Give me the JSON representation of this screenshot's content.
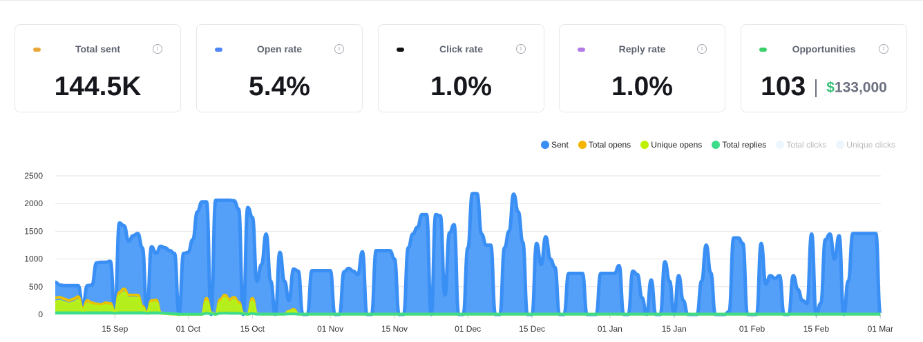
{
  "cards": [
    {
      "title": "Total sent",
      "value": "144.5K",
      "color": "#e9a93a"
    },
    {
      "title": "Open rate",
      "value": "5.4%",
      "color": "#4f86f7"
    },
    {
      "title": "Click rate",
      "value": "1.0%",
      "color": "#111111"
    },
    {
      "title": "Reply rate",
      "value": "1.0%",
      "color": "#b27be8"
    },
    {
      "title": "Opportunities",
      "value": "103",
      "amount_symbol": "$",
      "amount": "133,000",
      "color": "#3ccf6a"
    }
  ],
  "legend": [
    {
      "label": "Sent",
      "color": "#3a8ff5",
      "active": true
    },
    {
      "label": "Total opens",
      "color": "#f5b400",
      "active": true
    },
    {
      "label": "Unique opens",
      "color": "#bff000",
      "active": true
    },
    {
      "label": "Total replies",
      "color": "#3ddc8a",
      "active": true
    },
    {
      "label": "Total clicks",
      "color": "#eef6fd",
      "active": false
    },
    {
      "label": "Unique clicks",
      "color": "#eef6fd",
      "active": false
    }
  ],
  "chart_data": {
    "type": "area",
    "x_start": "02 Sep",
    "x_end": "01 Mar",
    "x_step": "1 day",
    "x_tick_labels": [
      "15 Sep",
      "01 Oct",
      "15 Oct",
      "01 Nov",
      "15 Nov",
      "01 Dec",
      "15 Dec",
      "01 Jan",
      "15 Jan",
      "01 Feb",
      "15 Feb",
      "01 Mar"
    ],
    "y_tick_labels": [
      "0",
      "500",
      "1000",
      "1500",
      "2000",
      "2500"
    ],
    "ylim": [
      0,
      2500
    ],
    "grid": true,
    "legend_position": "top-right",
    "series": [
      {
        "name": "Sent",
        "color": "#3a8ff5",
        "fill": "#549ff8",
        "values": [
          580,
          530,
          520,
          520,
          520,
          520,
          150,
          520,
          530,
          930,
          940,
          940,
          960,
          50,
          1650,
          1600,
          1320,
          1420,
          1460,
          1200,
          50,
          1220,
          1100,
          1230,
          1200,
          1150,
          1100,
          0,
          1100,
          1120,
          1350,
          1850,
          2030,
          2030,
          0,
          2060,
          2060,
          2060,
          2060,
          2050,
          1900,
          0,
          1930,
          1750,
          600,
          900,
          1450,
          600,
          0,
          1120,
          600,
          250,
          820,
          780,
          0,
          0,
          790,
          790,
          790,
          790,
          790,
          0,
          0,
          770,
          830,
          780,
          720,
          1130,
          0,
          0,
          1150,
          1150,
          1150,
          1150,
          1000,
          0,
          0,
          1200,
          1450,
          1570,
          1800,
          1800,
          0,
          1800,
          1780,
          350,
          1470,
          1620,
          0,
          0,
          1200,
          2180,
          2180,
          1450,
          1250,
          1250,
          0,
          0,
          1200,
          1500,
          2170,
          1850,
          1300,
          0,
          0,
          1280,
          900,
          1400,
          1000,
          850,
          0,
          0,
          740,
          740,
          740,
          740,
          0,
          0,
          0,
          740,
          740,
          740,
          740,
          880,
          0,
          0,
          780,
          720,
          300,
          0,
          620,
          0,
          0,
          950,
          600,
          0,
          700,
          250,
          0,
          0,
          0,
          600,
          1250,
          750,
          0,
          0,
          0,
          50,
          1380,
          1380,
          1280,
          0,
          0,
          0,
          1280,
          550,
          700,
          650,
          700,
          0,
          0,
          700,
          450,
          250,
          200,
          1450,
          0,
          200,
          1350,
          1450,
          1000,
          1420,
          0,
          600,
          1460,
          1460,
          1460,
          1460,
          1460,
          1460,
          0
        ]
      },
      {
        "name": "Total opens",
        "color": "#eac200",
        "fill": "none",
        "values": [
          300,
          310,
          280,
          250,
          280,
          320,
          100,
          250,
          210,
          190,
          180,
          210,
          200,
          40,
          400,
          460,
          350,
          350,
          350,
          150,
          30,
          250,
          260,
          30,
          20,
          10,
          5,
          0,
          0,
          0,
          0,
          0,
          0,
          290,
          30,
          0,
          270,
          350,
          270,
          310,
          220,
          20,
          0,
          290,
          10,
          5,
          5,
          5,
          5,
          5,
          5,
          60,
          90,
          5,
          5,
          5,
          5,
          5,
          5,
          5,
          5,
          5,
          5,
          5,
          5,
          5,
          5,
          5,
          5,
          5,
          5,
          5,
          5,
          5,
          5,
          5,
          5,
          5,
          5,
          5,
          5,
          5,
          5,
          5,
          5,
          5,
          5,
          5,
          5,
          5,
          5,
          5,
          5,
          5,
          5,
          5,
          5,
          5,
          5,
          5,
          5,
          5,
          5,
          5,
          5,
          5,
          5,
          5,
          5,
          5,
          5,
          5,
          5,
          5,
          5,
          5,
          5,
          5,
          5,
          5,
          5,
          5,
          5,
          5,
          5,
          5,
          5,
          5,
          5,
          5,
          5,
          5,
          5,
          5,
          5,
          5,
          5,
          5,
          5,
          5,
          5,
          5,
          5,
          5,
          5,
          5,
          5,
          5,
          5,
          5,
          5,
          5,
          5,
          5,
          5,
          5,
          5,
          5,
          5,
          5,
          5,
          5,
          5,
          5,
          5,
          5,
          5,
          5,
          5,
          5,
          5,
          5,
          5,
          5,
          5,
          5,
          5,
          5,
          5,
          5,
          5
        ]
      },
      {
        "name": "Unique opens",
        "color": "#b8f01a",
        "fill": "#b4ee1c",
        "values": [
          230,
          240,
          210,
          190,
          210,
          250,
          70,
          190,
          160,
          150,
          140,
          160,
          150,
          30,
          330,
          390,
          290,
          290,
          290,
          110,
          20,
          200,
          210,
          20,
          15,
          8,
          4,
          0,
          0,
          0,
          0,
          0,
          0,
          230,
          20,
          0,
          210,
          290,
          210,
          250,
          170,
          15,
          0,
          230,
          8,
          4,
          4,
          4,
          4,
          4,
          4,
          45,
          70,
          4,
          4,
          4,
          4,
          4,
          4,
          4,
          4,
          4,
          4,
          4,
          4,
          4,
          4,
          4,
          4,
          4,
          4,
          4,
          4,
          4,
          4,
          4,
          4,
          4,
          4,
          4,
          4,
          4,
          4,
          4,
          4,
          4,
          4,
          4,
          4,
          4,
          4,
          4,
          4,
          4,
          4,
          4,
          4,
          4,
          4,
          4,
          4,
          4,
          4,
          4,
          4,
          4,
          4,
          4,
          4,
          4,
          4,
          4,
          4,
          4,
          4,
          4,
          4,
          4,
          4,
          4,
          4,
          4,
          4,
          4,
          4,
          4,
          4,
          4,
          4,
          4,
          4,
          4,
          4,
          4,
          4,
          4,
          4,
          4,
          4,
          4,
          4,
          4,
          4,
          4,
          4,
          4,
          4,
          4,
          4,
          4,
          4,
          4,
          4,
          4,
          4,
          4,
          4,
          4,
          4,
          4,
          4,
          4,
          4,
          4,
          4,
          4,
          4,
          4,
          4,
          4,
          4,
          4,
          4,
          4,
          4,
          4,
          4,
          4,
          4,
          4,
          4
        ]
      },
      {
        "name": "Total replies",
        "color": "#3ddc8a",
        "fill": "#3ddc8a",
        "values": [
          30,
          30,
          30,
          30,
          30,
          30,
          25,
          30,
          30,
          30,
          30,
          30,
          30,
          20,
          30,
          30,
          30,
          30,
          30,
          30,
          20,
          30,
          30,
          25,
          20,
          15,
          10,
          5,
          5,
          5,
          5,
          5,
          5,
          20,
          10,
          5,
          20,
          25,
          20,
          20,
          20,
          10,
          5,
          15,
          5,
          5,
          5,
          5,
          5,
          5,
          5,
          10,
          10,
          5,
          5,
          5,
          5,
          5,
          5,
          5,
          5,
          5,
          5,
          5,
          5,
          5,
          5,
          5,
          5,
          5,
          5,
          5,
          5,
          5,
          5,
          5,
          5,
          5,
          5,
          5,
          5,
          5,
          5,
          5,
          5,
          5,
          5,
          5,
          5,
          5,
          5,
          5,
          5,
          5,
          5,
          5,
          5,
          5,
          5,
          5,
          5,
          5,
          5,
          5,
          5,
          5,
          5,
          5,
          5,
          5,
          5,
          5,
          5,
          5,
          5,
          5,
          5,
          5,
          5,
          5,
          5,
          5,
          5,
          5,
          5,
          5,
          5,
          5,
          5,
          5,
          5,
          5,
          5,
          5,
          5,
          5,
          5,
          5,
          5,
          5,
          5,
          5,
          5,
          5,
          5,
          5,
          5,
          5,
          5,
          5,
          5,
          5,
          5,
          5,
          5,
          5,
          5,
          5,
          5,
          5,
          5,
          5,
          5,
          5,
          5,
          5,
          5,
          5,
          5,
          5,
          5,
          5,
          5,
          5,
          5,
          5,
          5,
          5,
          5,
          5,
          5
        ]
      }
    ]
  }
}
